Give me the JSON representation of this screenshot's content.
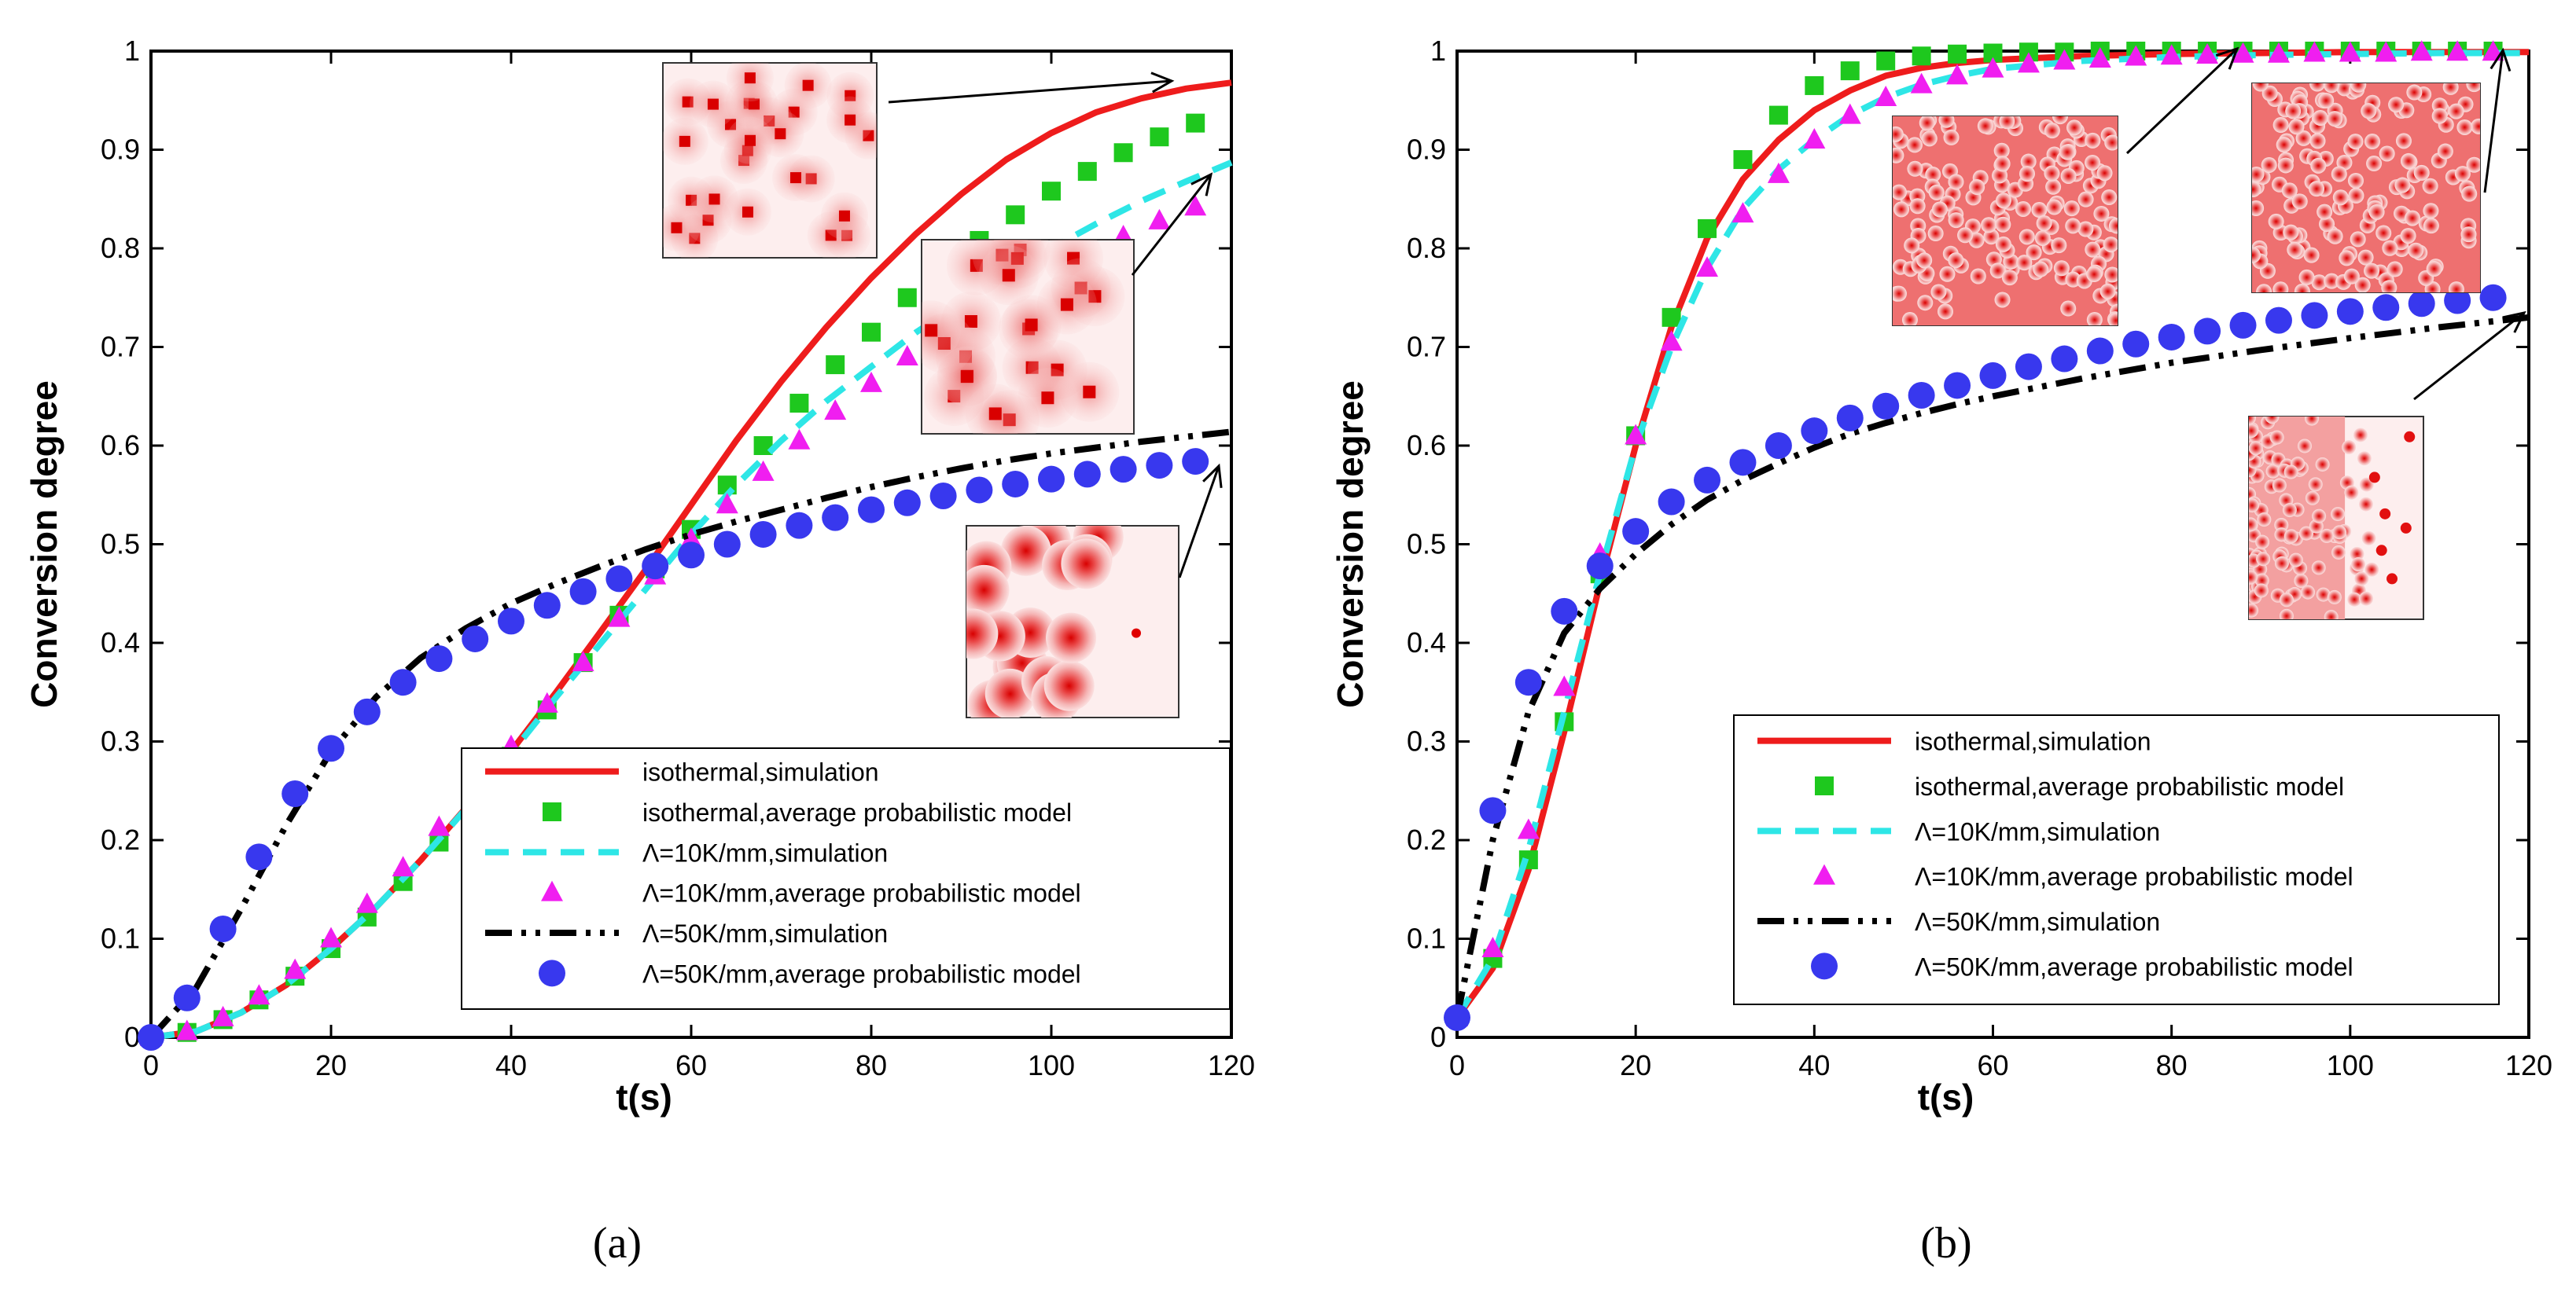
{
  "chart_data": [
    {
      "type": "line",
      "caption": "(a)",
      "xlabel": "t(s)",
      "ylabel": "Conversion degree",
      "xlim": [
        0,
        120
      ],
      "ylim": [
        0,
        1
      ],
      "xticks": [
        0,
        20,
        40,
        60,
        80,
        100,
        120
      ],
      "yticks": [
        0,
        0.1,
        0.2,
        0.3,
        0.4,
        0.5,
        0.6,
        0.7,
        0.8,
        0.9,
        1
      ],
      "ytick_labels": [
        "0",
        "0.1",
        "0.2",
        "0.3",
        "0.4",
        "0.5",
        "0.6",
        "0.7",
        "0.8",
        "0.9",
        "1"
      ],
      "legend_position": "bottom-right",
      "series": [
        {
          "name": "isothermal,simulation",
          "style": "solid",
          "color": "#ee1c1c",
          "x": [
            0,
            5,
            10,
            15,
            20,
            25,
            30,
            35,
            40,
            45,
            50,
            55,
            60,
            65,
            70,
            75,
            80,
            85,
            90,
            95,
            100,
            105,
            110,
            115,
            120
          ],
          "y": [
            0,
            0.006,
            0.025,
            0.053,
            0.09,
            0.132,
            0.18,
            0.233,
            0.29,
            0.35,
            0.412,
            0.475,
            0.54,
            0.605,
            0.665,
            0.72,
            0.77,
            0.815,
            0.855,
            0.89,
            0.917,
            0.938,
            0.952,
            0.962,
            0.968
          ]
        },
        {
          "name": "isothermal,average probabilistic model",
          "style": "square",
          "color": "#1ec81e",
          "x": [
            0,
            4,
            8,
            12,
            16,
            20,
            24,
            28,
            32,
            36,
            40,
            44,
            48,
            52,
            56,
            60,
            64,
            68,
            72,
            76,
            80,
            84,
            88,
            92,
            96,
            100,
            104,
            108,
            112,
            116
          ],
          "y": [
            0,
            0.005,
            0.018,
            0.038,
            0.062,
            0.09,
            0.122,
            0.158,
            0.198,
            0.24,
            0.285,
            0.332,
            0.38,
            0.428,
            0.475,
            0.515,
            0.56,
            0.6,
            0.643,
            0.682,
            0.715,
            0.75,
            0.78,
            0.808,
            0.834,
            0.858,
            0.878,
            0.897,
            0.913,
            0.927
          ]
        },
        {
          "name": "Λ=10K/mm,simulation",
          "style": "dashed",
          "color": "#2ee6e6",
          "x": [
            0,
            5,
            10,
            15,
            20,
            25,
            30,
            35,
            40,
            45,
            50,
            55,
            60,
            65,
            70,
            75,
            80,
            85,
            90,
            95,
            100,
            105,
            110,
            115,
            120
          ],
          "y": [
            0,
            0.006,
            0.025,
            0.053,
            0.09,
            0.132,
            0.18,
            0.232,
            0.288,
            0.345,
            0.4,
            0.455,
            0.51,
            0.56,
            0.605,
            0.645,
            0.68,
            0.715,
            0.745,
            0.775,
            0.8,
            0.825,
            0.848,
            0.868,
            0.887
          ]
        },
        {
          "name": "Λ=10K/mm,average probabilistic model",
          "style": "triangle",
          "color": "#f01ef0",
          "x": [
            0,
            4,
            8,
            12,
            16,
            20,
            24,
            28,
            32,
            36,
            40,
            44,
            48,
            52,
            56,
            60,
            64,
            68,
            72,
            76,
            80,
            84,
            88,
            92,
            96,
            100,
            104,
            108,
            112,
            116
          ],
          "y": [
            0,
            0.006,
            0.02,
            0.042,
            0.068,
            0.1,
            0.135,
            0.172,
            0.213,
            0.253,
            0.295,
            0.338,
            0.38,
            0.425,
            0.468,
            0.505,
            0.54,
            0.573,
            0.605,
            0.635,
            0.663,
            0.69,
            0.713,
            0.735,
            0.757,
            0.776,
            0.795,
            0.812,
            0.828,
            0.842
          ]
        },
        {
          "name": "Λ=50K/mm,simulation",
          "style": "dashdot",
          "color": "#000000",
          "x": [
            0,
            5,
            10,
            15,
            20,
            25,
            30,
            35,
            40,
            45,
            50,
            55,
            60,
            65,
            70,
            75,
            80,
            85,
            90,
            95,
            100,
            105,
            110,
            115,
            120
          ],
          "y": [
            0,
            0.05,
            0.13,
            0.215,
            0.29,
            0.345,
            0.385,
            0.415,
            0.44,
            0.46,
            0.478,
            0.495,
            0.51,
            0.523,
            0.535,
            0.547,
            0.558,
            0.568,
            0.577,
            0.585,
            0.592,
            0.598,
            0.604,
            0.609,
            0.614
          ]
        },
        {
          "name": "Λ=50K/mm,average probabilistic model",
          "style": "circle",
          "color": "#3838ee",
          "x": [
            0,
            4,
            8,
            12,
            16,
            20,
            24,
            28,
            32,
            36,
            40,
            44,
            48,
            52,
            56,
            60,
            64,
            68,
            72,
            76,
            80,
            84,
            88,
            92,
            96,
            100,
            104,
            108,
            112,
            116
          ],
          "y": [
            0,
            0.04,
            0.11,
            0.183,
            0.247,
            0.293,
            0.33,
            0.36,
            0.384,
            0.404,
            0.422,
            0.438,
            0.452,
            0.465,
            0.478,
            0.489,
            0.5,
            0.51,
            0.519,
            0.527,
            0.535,
            0.542,
            0.549,
            0.555,
            0.561,
            0.566,
            0.571,
            0.576,
            0.58,
            0.584
          ]
        }
      ]
    },
    {
      "type": "line",
      "caption": "(b)",
      "xlabel": "t(s)",
      "ylabel": "Conversion degree",
      "xlim": [
        0,
        120
      ],
      "ylim": [
        0,
        1
      ],
      "xticks": [
        0,
        20,
        40,
        60,
        80,
        100,
        120
      ],
      "yticks": [
        0,
        0.1,
        0.2,
        0.3,
        0.4,
        0.5,
        0.6,
        0.7,
        0.8,
        0.9,
        1
      ],
      "ytick_labels": [
        "0",
        "0.1",
        "0.2",
        "0.3",
        "0.4",
        "0.5",
        "0.6",
        "0.7",
        "0.8",
        "0.9",
        "1"
      ],
      "legend_position": "bottom-right",
      "series": [
        {
          "name": "isothermal,simulation",
          "style": "solid",
          "color": "#ee1c1c",
          "x": [
            0,
            4,
            8,
            12,
            16,
            20,
            24,
            28,
            32,
            36,
            40,
            44,
            48,
            52,
            56,
            60,
            70,
            80,
            90,
            100,
            110,
            120
          ],
          "y": [
            0.02,
            0.07,
            0.17,
            0.31,
            0.46,
            0.6,
            0.72,
            0.81,
            0.87,
            0.91,
            0.94,
            0.96,
            0.975,
            0.983,
            0.988,
            0.991,
            0.995,
            0.997,
            0.998,
            0.999,
            0.999,
            0.999
          ]
        },
        {
          "name": "isothermal,average probabilistic model",
          "style": "square",
          "color": "#1ec81e",
          "x": [
            0,
            4,
            8,
            12,
            16,
            20,
            24,
            28,
            32,
            36,
            40,
            44,
            48,
            52,
            56,
            60,
            64,
            68,
            72,
            76,
            80,
            84,
            88,
            92,
            96,
            100,
            104,
            108,
            112,
            116
          ],
          "y": [
            0.02,
            0.08,
            0.18,
            0.32,
            0.47,
            0.61,
            0.73,
            0.82,
            0.89,
            0.935,
            0.965,
            0.98,
            0.99,
            0.995,
            0.997,
            0.998,
            0.999,
            0.999,
            1,
            1,
            1,
            1,
            1,
            1,
            1,
            1,
            1,
            1,
            1,
            1
          ]
        },
        {
          "name": "Λ=10K/mm,simulation",
          "style": "dashed",
          "color": "#2ee6e6",
          "x": [
            0,
            4,
            8,
            12,
            16,
            20,
            24,
            28,
            32,
            36,
            40,
            44,
            48,
            52,
            56,
            60,
            70,
            80,
            90,
            100,
            110,
            120
          ],
          "y": [
            0.02,
            0.08,
            0.19,
            0.33,
            0.47,
            0.6,
            0.7,
            0.78,
            0.84,
            0.88,
            0.91,
            0.935,
            0.953,
            0.966,
            0.975,
            0.982,
            0.99,
            0.994,
            0.996,
            0.997,
            0.998,
            0.998
          ]
        },
        {
          "name": "Λ=10K/mm,average probabilistic model",
          "style": "triangle",
          "color": "#f01ef0",
          "x": [
            0,
            4,
            8,
            12,
            16,
            20,
            24,
            28,
            32,
            36,
            40,
            44,
            48,
            52,
            56,
            60,
            64,
            68,
            72,
            76,
            80,
            84,
            88,
            92,
            96,
            100,
            104,
            108,
            112,
            116
          ],
          "y": [
            0.02,
            0.09,
            0.21,
            0.355,
            0.49,
            0.61,
            0.705,
            0.78,
            0.835,
            0.875,
            0.91,
            0.935,
            0.953,
            0.966,
            0.975,
            0.982,
            0.987,
            0.99,
            0.992,
            0.994,
            0.995,
            0.996,
            0.997,
            0.997,
            0.998,
            0.998,
            0.998,
            0.999,
            0.999,
            0.999
          ]
        },
        {
          "name": "Λ=50K/mm,simulation",
          "style": "dashdot",
          "color": "#000000",
          "x": [
            0,
            4,
            8,
            12,
            16,
            20,
            24,
            28,
            32,
            36,
            40,
            44,
            48,
            52,
            56,
            60,
            70,
            80,
            90,
            100,
            110,
            120
          ],
          "y": [
            0.02,
            0.2,
            0.33,
            0.41,
            0.455,
            0.49,
            0.52,
            0.545,
            0.565,
            0.582,
            0.598,
            0.612,
            0.623,
            0.633,
            0.642,
            0.65,
            0.668,
            0.684,
            0.697,
            0.709,
            0.72,
            0.73
          ]
        },
        {
          "name": "Λ=50K/mm,average probabilistic model",
          "style": "circle",
          "color": "#3838ee",
          "x": [
            0,
            4,
            8,
            12,
            16,
            20,
            24,
            28,
            32,
            36,
            40,
            44,
            48,
            52,
            56,
            60,
            64,
            68,
            72,
            76,
            80,
            84,
            88,
            92,
            96,
            100,
            104,
            108,
            112,
            116
          ],
          "y": [
            0.02,
            0.23,
            0.36,
            0.432,
            0.478,
            0.513,
            0.543,
            0.565,
            0.583,
            0.6,
            0.615,
            0.628,
            0.64,
            0.651,
            0.661,
            0.671,
            0.68,
            0.688,
            0.696,
            0.703,
            0.71,
            0.716,
            0.722,
            0.727,
            0.732,
            0.736,
            0.74,
            0.744,
            0.747,
            0.75
          ]
        }
      ]
    }
  ]
}
